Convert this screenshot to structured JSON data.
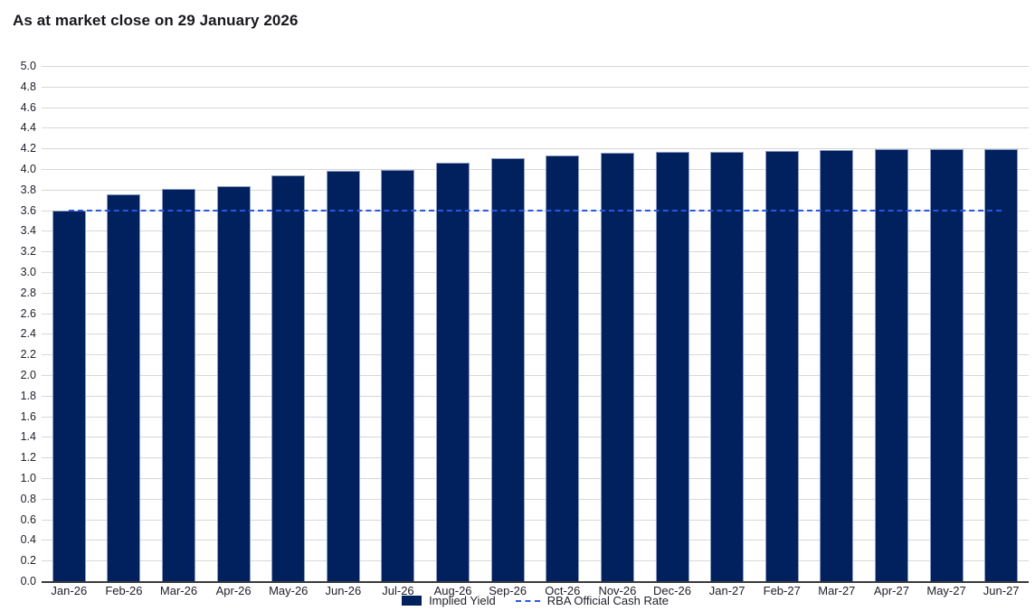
{
  "title": "As at market close on 29 January 2026",
  "chart_data": {
    "type": "bar",
    "title": "As at market close on 29 January 2026",
    "categories": [
      "Jan-26",
      "Feb-26",
      "Mar-26",
      "Apr-26",
      "May-26",
      "Jun-26",
      "Jul-26",
      "Aug-26",
      "Sep-26",
      "Oct-26",
      "Nov-26",
      "Dec-26",
      "Jan-27",
      "Feb-27",
      "Mar-27",
      "Apr-27",
      "May-27",
      "Jun-27"
    ],
    "series": [
      {
        "name": "Implied Yield",
        "type": "bar",
        "values": [
          3.6,
          3.755,
          3.805,
          3.83,
          3.935,
          3.985,
          3.995,
          4.06,
          4.105,
          4.13,
          4.155,
          4.165,
          4.17,
          4.175,
          4.18,
          4.19,
          4.19,
          4.19
        ]
      },
      {
        "name": "RBA Official Cash Rate",
        "type": "line",
        "line_style": "dashed",
        "value": 3.6
      }
    ],
    "xlabel": "",
    "ylabel": "",
    "ylim": [
      0,
      5
    ],
    "ytick_step": 0.2,
    "ytick_labels": [
      "5.0",
      "4.8",
      "4.6",
      "4.4",
      "4.2",
      "4.0",
      "3.8",
      "3.6",
      "3.4",
      "3.2",
      "3.0",
      "2.8",
      "2.6",
      "2.4",
      "2.2",
      "2.0",
      "1.8",
      "1.6",
      "1.4",
      "1.2",
      "1.0",
      "0.8",
      "0.6",
      "0.4",
      "0.2",
      "0.0"
    ],
    "grid": "horizontal",
    "legend_position": "bottom-center"
  },
  "legend": {
    "implied_yield_label": "Implied Yield",
    "cash_rate_label": "RBA Official Cash Rate"
  },
  "colors": {
    "bar_fill": "#00205e",
    "bar_border": "#8e9cc2",
    "dashed_line": "#2a57e2",
    "gridline": "#d7d7d7",
    "axis_line": "#3a3a3a",
    "text": "#20222b",
    "title_text": "#17171c",
    "background": "#ffffff"
  }
}
